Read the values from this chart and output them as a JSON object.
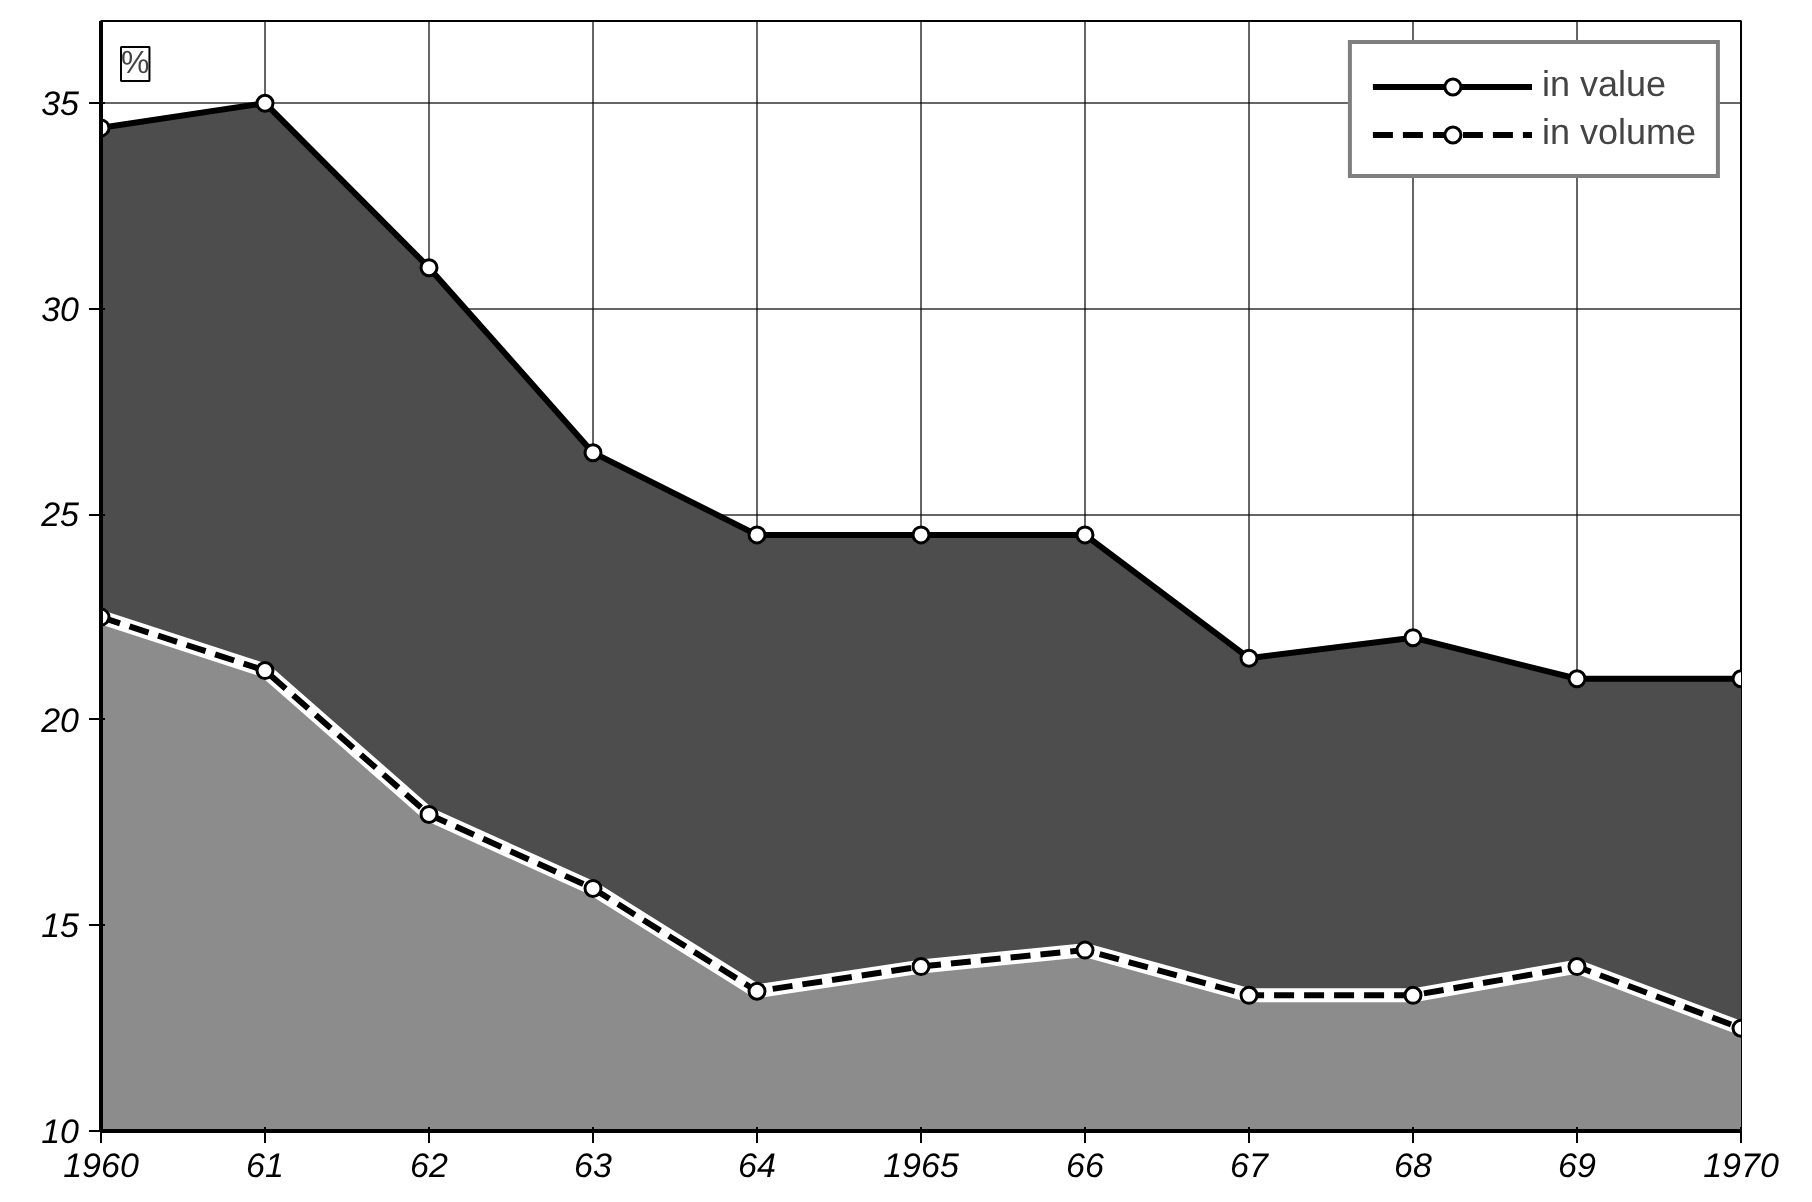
{
  "chart_data": {
    "type": "area",
    "x": [
      1960,
      1961,
      1962,
      1963,
      1964,
      1965,
      1966,
      1967,
      1968,
      1969,
      1970
    ],
    "series": [
      {
        "name": "in value",
        "color": "#4d4d4d",
        "line_style": "solid",
        "values": [
          34.4,
          35,
          31,
          26.5,
          24.5,
          24.5,
          24.5,
          21.5,
          22,
          21,
          21
        ]
      },
      {
        "name": "in volume",
        "color": "#8c8c8c",
        "line_style": "dashed",
        "values": [
          22.5,
          21.2,
          17.7,
          15.9,
          13.4,
          14,
          14.4,
          13.3,
          13.3,
          14,
          12.5
        ]
      }
    ],
    "xlim": [
      1960,
      1970
    ],
    "ylim": [
      10,
      37
    ],
    "xticks": [
      {
        "value": 1960,
        "label": "1960"
      },
      {
        "value": 1961,
        "label": "61"
      },
      {
        "value": 1962,
        "label": "62"
      },
      {
        "value": 1963,
        "label": "63"
      },
      {
        "value": 1964,
        "label": "64"
      },
      {
        "value": 1965,
        "label": "1965"
      },
      {
        "value": 1966,
        "label": "66"
      },
      {
        "value": 1967,
        "label": "67"
      },
      {
        "value": 1968,
        "label": "68"
      },
      {
        "value": 1969,
        "label": "69"
      },
      {
        "value": 1970,
        "label": "1970"
      }
    ],
    "yticks": [
      10,
      15,
      20,
      25,
      30,
      35
    ],
    "annotations": [
      "%"
    ],
    "grid": true,
    "legend": "top right",
    "marker": "circle"
  }
}
